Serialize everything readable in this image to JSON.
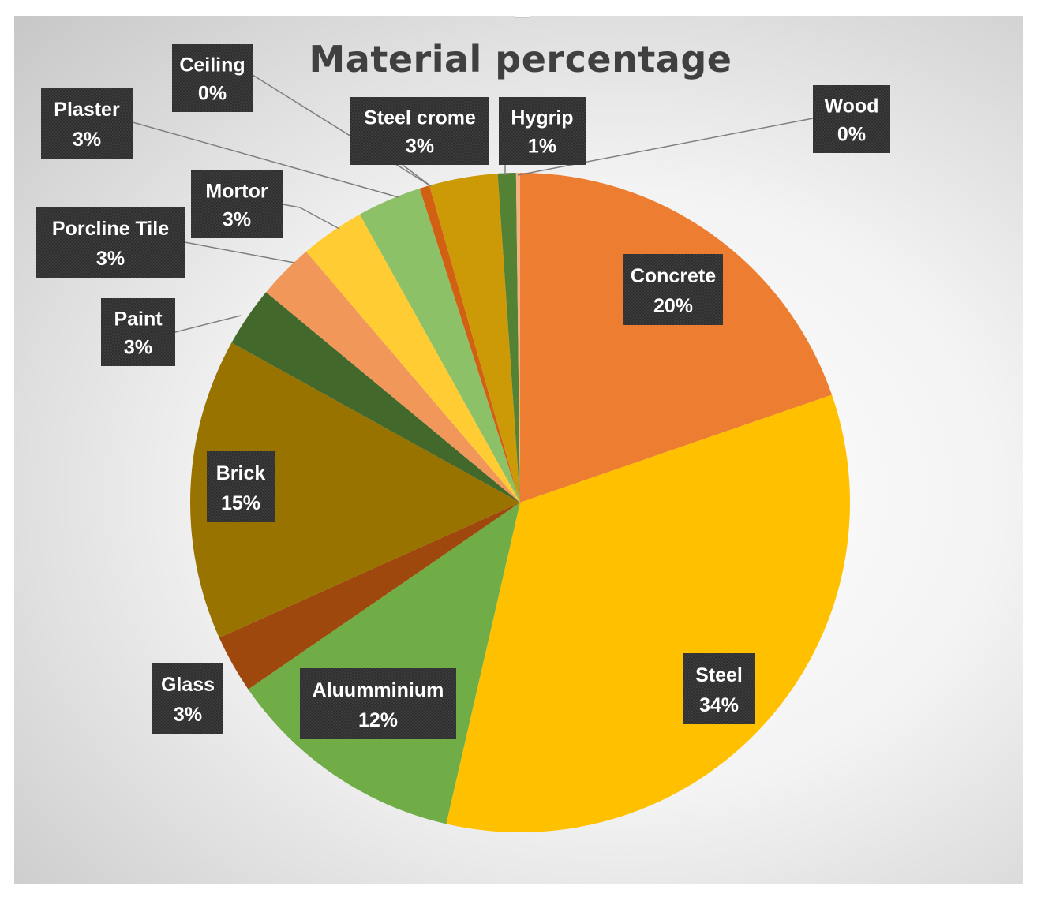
{
  "chart_data": {
    "type": "pie",
    "title": "Material percentage",
    "slices": [
      {
        "label": "Concrete",
        "value": 20.0,
        "display": "20%",
        "color": "#ED7D31"
      },
      {
        "label": "Steel",
        "value": 34.4,
        "display": "34%",
        "color": "#FFC000"
      },
      {
        "label": "Aluumminium",
        "value": 12.0,
        "display": "12%",
        "color": "#70AD47"
      },
      {
        "label": "Glass",
        "value": 2.9,
        "display": "3%",
        "color": "#9E480E"
      },
      {
        "label": "Brick",
        "value": 15.0,
        "display": "15%",
        "color": "#997300"
      },
      {
        "label": "Paint",
        "value": 3.0,
        "display": "3%",
        "color": "#43682B"
      },
      {
        "label": "Porcline Tile",
        "value": 2.8,
        "display": "3%",
        "color": "#F1975A"
      },
      {
        "label": "Mortor",
        "value": 3.2,
        "display": "3%",
        "color": "#FFCD33"
      },
      {
        "label": "Plaster",
        "value": 3.2,
        "display": "3%",
        "color": "#8CC168"
      },
      {
        "label": "Ceiling",
        "value": 0.5,
        "display": "0%",
        "color": "#D26012"
      },
      {
        "label": "Steel crome",
        "value": 3.4,
        "display": "3%",
        "color": "#CC9A06"
      },
      {
        "label": "Hygrip",
        "value": 0.9,
        "display": "1%",
        "color": "#548235"
      },
      {
        "label": "Wood",
        "value": 0.2,
        "display": "0%",
        "color": "#F4B183"
      }
    ],
    "legend": "none",
    "data_labels": "callouts"
  }
}
